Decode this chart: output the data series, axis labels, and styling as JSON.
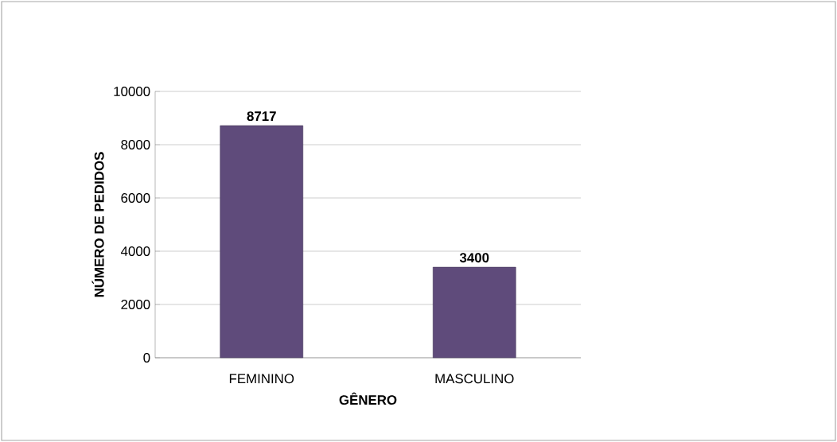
{
  "chart_data": {
    "type": "bar",
    "xlabel": "GÊNERO",
    "ylabel": "NÚMERO DE PEDIDOS",
    "categories": [
      "FEMININO",
      "MASCULINO"
    ],
    "values": [
      8717,
      3400
    ],
    "color": "#5f4b7b",
    "ylim": [
      0,
      10000
    ],
    "yticks": [
      0,
      2000,
      4000,
      6000,
      8000,
      10000
    ],
    "grid": "y",
    "data_labels": true
  }
}
